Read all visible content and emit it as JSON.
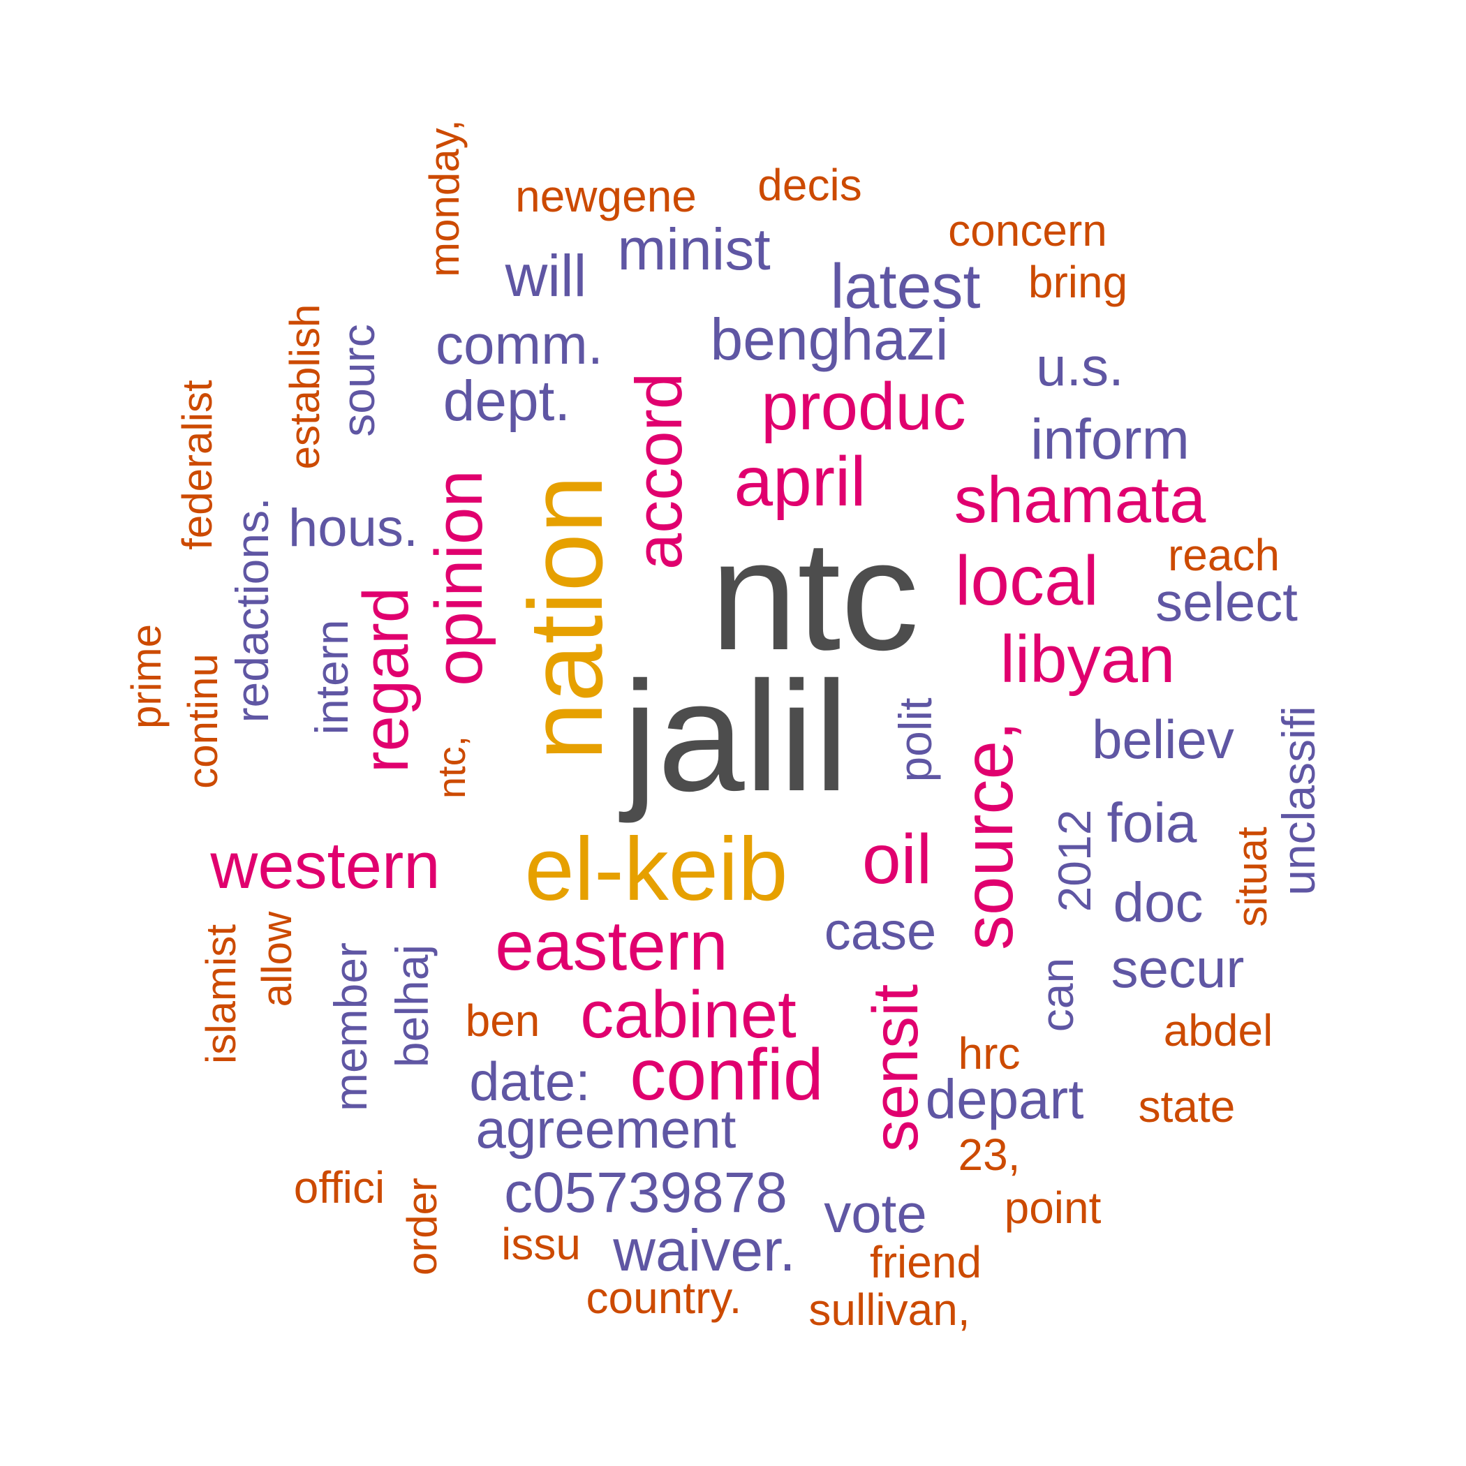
{
  "palette": {
    "top": "#4d4d4d",
    "high": "#e6a000",
    "mid": "#e0006e",
    "low": "#5f56a3",
    "lowest": "#cc4a00"
  },
  "words": [
    {
      "text": "ntc",
      "tier": "top"
    },
    {
      "text": "jalil",
      "tier": "top"
    },
    {
      "text": "nation",
      "tier": "high"
    },
    {
      "text": "el-keib",
      "tier": "high"
    },
    {
      "text": "eastern",
      "tier": "mid"
    },
    {
      "text": "western",
      "tier": "mid"
    },
    {
      "text": "oil",
      "tier": "mid"
    },
    {
      "text": "source,",
      "tier": "mid"
    },
    {
      "text": "cabinet",
      "tier": "mid"
    },
    {
      "text": "confid",
      "tier": "mid"
    },
    {
      "text": "libyan",
      "tier": "mid"
    },
    {
      "text": "local",
      "tier": "mid"
    },
    {
      "text": "shamata",
      "tier": "mid"
    },
    {
      "text": "april",
      "tier": "mid"
    },
    {
      "text": "produc",
      "tier": "mid"
    },
    {
      "text": "accord",
      "tier": "mid"
    },
    {
      "text": "opinion",
      "tier": "mid"
    },
    {
      "text": "regard",
      "tier": "mid"
    },
    {
      "text": "sensit",
      "tier": "mid"
    },
    {
      "text": "minist",
      "tier": "low"
    },
    {
      "text": "will",
      "tier": "low"
    },
    {
      "text": "latest",
      "tier": "low"
    },
    {
      "text": "benghazi",
      "tier": "low"
    },
    {
      "text": "comm.",
      "tier": "low"
    },
    {
      "text": "dept.",
      "tier": "low"
    },
    {
      "text": "u.s.",
      "tier": "low"
    },
    {
      "text": "inform",
      "tier": "low"
    },
    {
      "text": "hous.",
      "tier": "low"
    },
    {
      "text": "select",
      "tier": "low"
    },
    {
      "text": "believ",
      "tier": "low"
    },
    {
      "text": "foia",
      "tier": "low"
    },
    {
      "text": "doc",
      "tier": "low"
    },
    {
      "text": "secur",
      "tier": "low"
    },
    {
      "text": "case",
      "tier": "low"
    },
    {
      "text": "date:",
      "tier": "low"
    },
    {
      "text": "agreement",
      "tier": "low"
    },
    {
      "text": "c05739878",
      "tier": "low"
    },
    {
      "text": "waiver.",
      "tier": "low"
    },
    {
      "text": "vote",
      "tier": "low"
    },
    {
      "text": "depart",
      "tier": "low"
    },
    {
      "text": "sourc",
      "tier": "low"
    },
    {
      "text": "redactions.",
      "tier": "low"
    },
    {
      "text": "intern",
      "tier": "low"
    },
    {
      "text": "polit",
      "tier": "low"
    },
    {
      "text": "2012",
      "tier": "low"
    },
    {
      "text": "can",
      "tier": "low"
    },
    {
      "text": "member",
      "tier": "low"
    },
    {
      "text": "belhaj",
      "tier": "low"
    },
    {
      "text": "unclassifi",
      "tier": "low"
    },
    {
      "text": "newgene",
      "tier": "lowest"
    },
    {
      "text": "decis",
      "tier": "lowest"
    },
    {
      "text": "concern",
      "tier": "lowest"
    },
    {
      "text": "bring",
      "tier": "lowest"
    },
    {
      "text": "reach",
      "tier": "lowest"
    },
    {
      "text": "abdel",
      "tier": "lowest"
    },
    {
      "text": "state",
      "tier": "lowest"
    },
    {
      "text": "hrc",
      "tier": "lowest"
    },
    {
      "text": "23,",
      "tier": "lowest"
    },
    {
      "text": "point",
      "tier": "lowest"
    },
    {
      "text": "friend",
      "tier": "lowest"
    },
    {
      "text": "sullivan,",
      "tier": "lowest"
    },
    {
      "text": "country.",
      "tier": "lowest"
    },
    {
      "text": "issu",
      "tier": "lowest"
    },
    {
      "text": "ben",
      "tier": "lowest"
    },
    {
      "text": "offici",
      "tier": "lowest"
    },
    {
      "text": "monday,",
      "tier": "lowest"
    },
    {
      "text": "establish",
      "tier": "lowest"
    },
    {
      "text": "federalist",
      "tier": "lowest"
    },
    {
      "text": "prime",
      "tier": "lowest"
    },
    {
      "text": "continu",
      "tier": "lowest"
    },
    {
      "text": "ntc,",
      "tier": "lowest"
    },
    {
      "text": "islamist",
      "tier": "lowest"
    },
    {
      "text": "allow",
      "tier": "lowest"
    },
    {
      "text": "order",
      "tier": "lowest"
    },
    {
      "text": "situat",
      "tier": "lowest"
    }
  ]
}
